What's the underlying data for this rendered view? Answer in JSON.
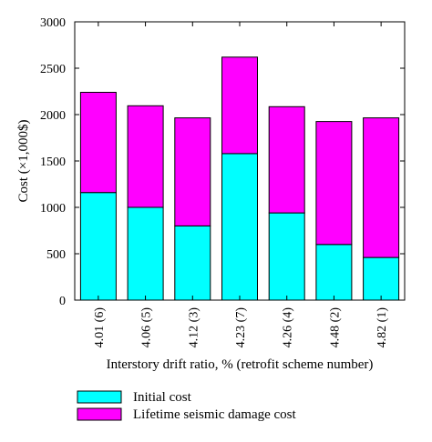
{
  "chart_data": {
    "type": "bar",
    "stacked": true,
    "categories": [
      "4.01 (6)",
      "4.06 (5)",
      "4.12 (3)",
      "4.23 (7)",
      "4.26 (4)",
      "4.48 (2)",
      "4.82 (1)"
    ],
    "series": [
      {
        "name": "Initial cost",
        "color": "#00ffff",
        "values": [
          1160,
          1000,
          800,
          1580,
          940,
          600,
          460
        ]
      },
      {
        "name": "Lifetime seismic damage cost",
        "color": "#ff00ff",
        "values": [
          1080,
          1095,
          1165,
          1040,
          1145,
          1325,
          1505
        ]
      }
    ],
    "xlabel": "Interstory drift ratio, % (retrofit scheme number)",
    "ylabel": "Cost (×1,000$)",
    "ylim": [
      0,
      3000
    ],
    "yticks": [
      0,
      500,
      1000,
      1500,
      2000,
      2500,
      3000
    ],
    "grid": false,
    "legend_position": "bottom-left"
  }
}
